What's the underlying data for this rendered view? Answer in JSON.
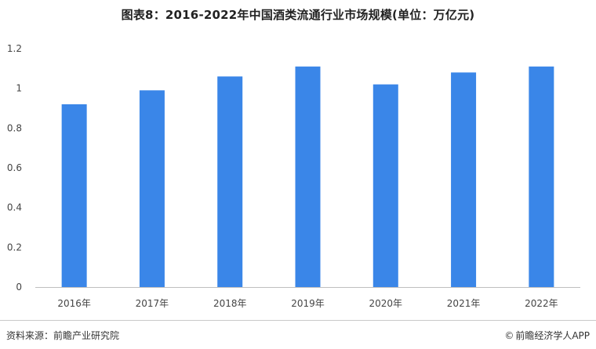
{
  "title": "图表8：2016-2022年中国酒类流通行业市场规模(单位：万亿元)",
  "chart_data": {
    "type": "bar",
    "categories": [
      "2016年",
      "2017年",
      "2018年",
      "2019年",
      "2020年",
      "2021年",
      "2022年"
    ],
    "values": [
      0.92,
      0.99,
      1.06,
      1.11,
      1.02,
      1.08,
      1.11
    ],
    "ylim": [
      0,
      1.2
    ],
    "yticks": [
      0,
      0.2,
      0.4,
      0.6,
      0.8,
      1,
      1.2
    ],
    "grid": false,
    "bar_color": "#3A86E8"
  },
  "footer": {
    "source": "资料来源：前瞻产业研究院",
    "brand": "前瞻经济学人APP",
    "brand_icon": "copyright-icon"
  }
}
